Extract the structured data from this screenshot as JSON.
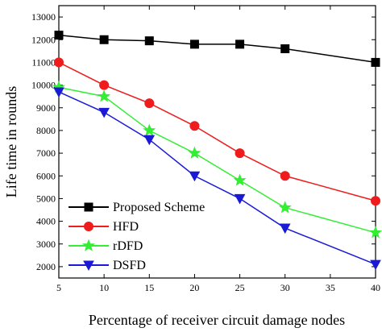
{
  "chart_data": {
    "type": "line",
    "xlabel": "Percentage of receiver circuit damage nodes",
    "ylabel": "Life time in rounds",
    "x": [
      5,
      10,
      15,
      20,
      25,
      30,
      40
    ],
    "xlim": [
      5,
      40
    ],
    "ylim": [
      1500,
      13500
    ],
    "x_ticks": [
      5,
      10,
      15,
      20,
      25,
      30,
      35,
      40
    ],
    "y_ticks": [
      2000,
      3000,
      4000,
      5000,
      6000,
      7000,
      8000,
      9000,
      10000,
      11000,
      12000,
      13000
    ],
    "grid": false,
    "legend_position": "bottom-left",
    "series": [
      {
        "name": "Proposed Scheme",
        "color": "#000000",
        "marker": "square",
        "values": [
          12200,
          12000,
          11950,
          11800,
          11800,
          11600,
          11000
        ]
      },
      {
        "name": "HFD",
        "color": "#ee1c1c",
        "marker": "circle",
        "values": [
          11000,
          10000,
          9200,
          8200,
          7000,
          6000,
          4900
        ]
      },
      {
        "name": "rDFD",
        "color": "#33ee33",
        "marker": "star",
        "values": [
          9900,
          9500,
          8000,
          7000,
          5800,
          4600,
          3500
        ]
      },
      {
        "name": "DSFD",
        "color": "#1a1ad6",
        "marker": "triangle-down",
        "values": [
          9700,
          8800,
          7600,
          6000,
          5000,
          3700,
          2100
        ]
      }
    ]
  }
}
